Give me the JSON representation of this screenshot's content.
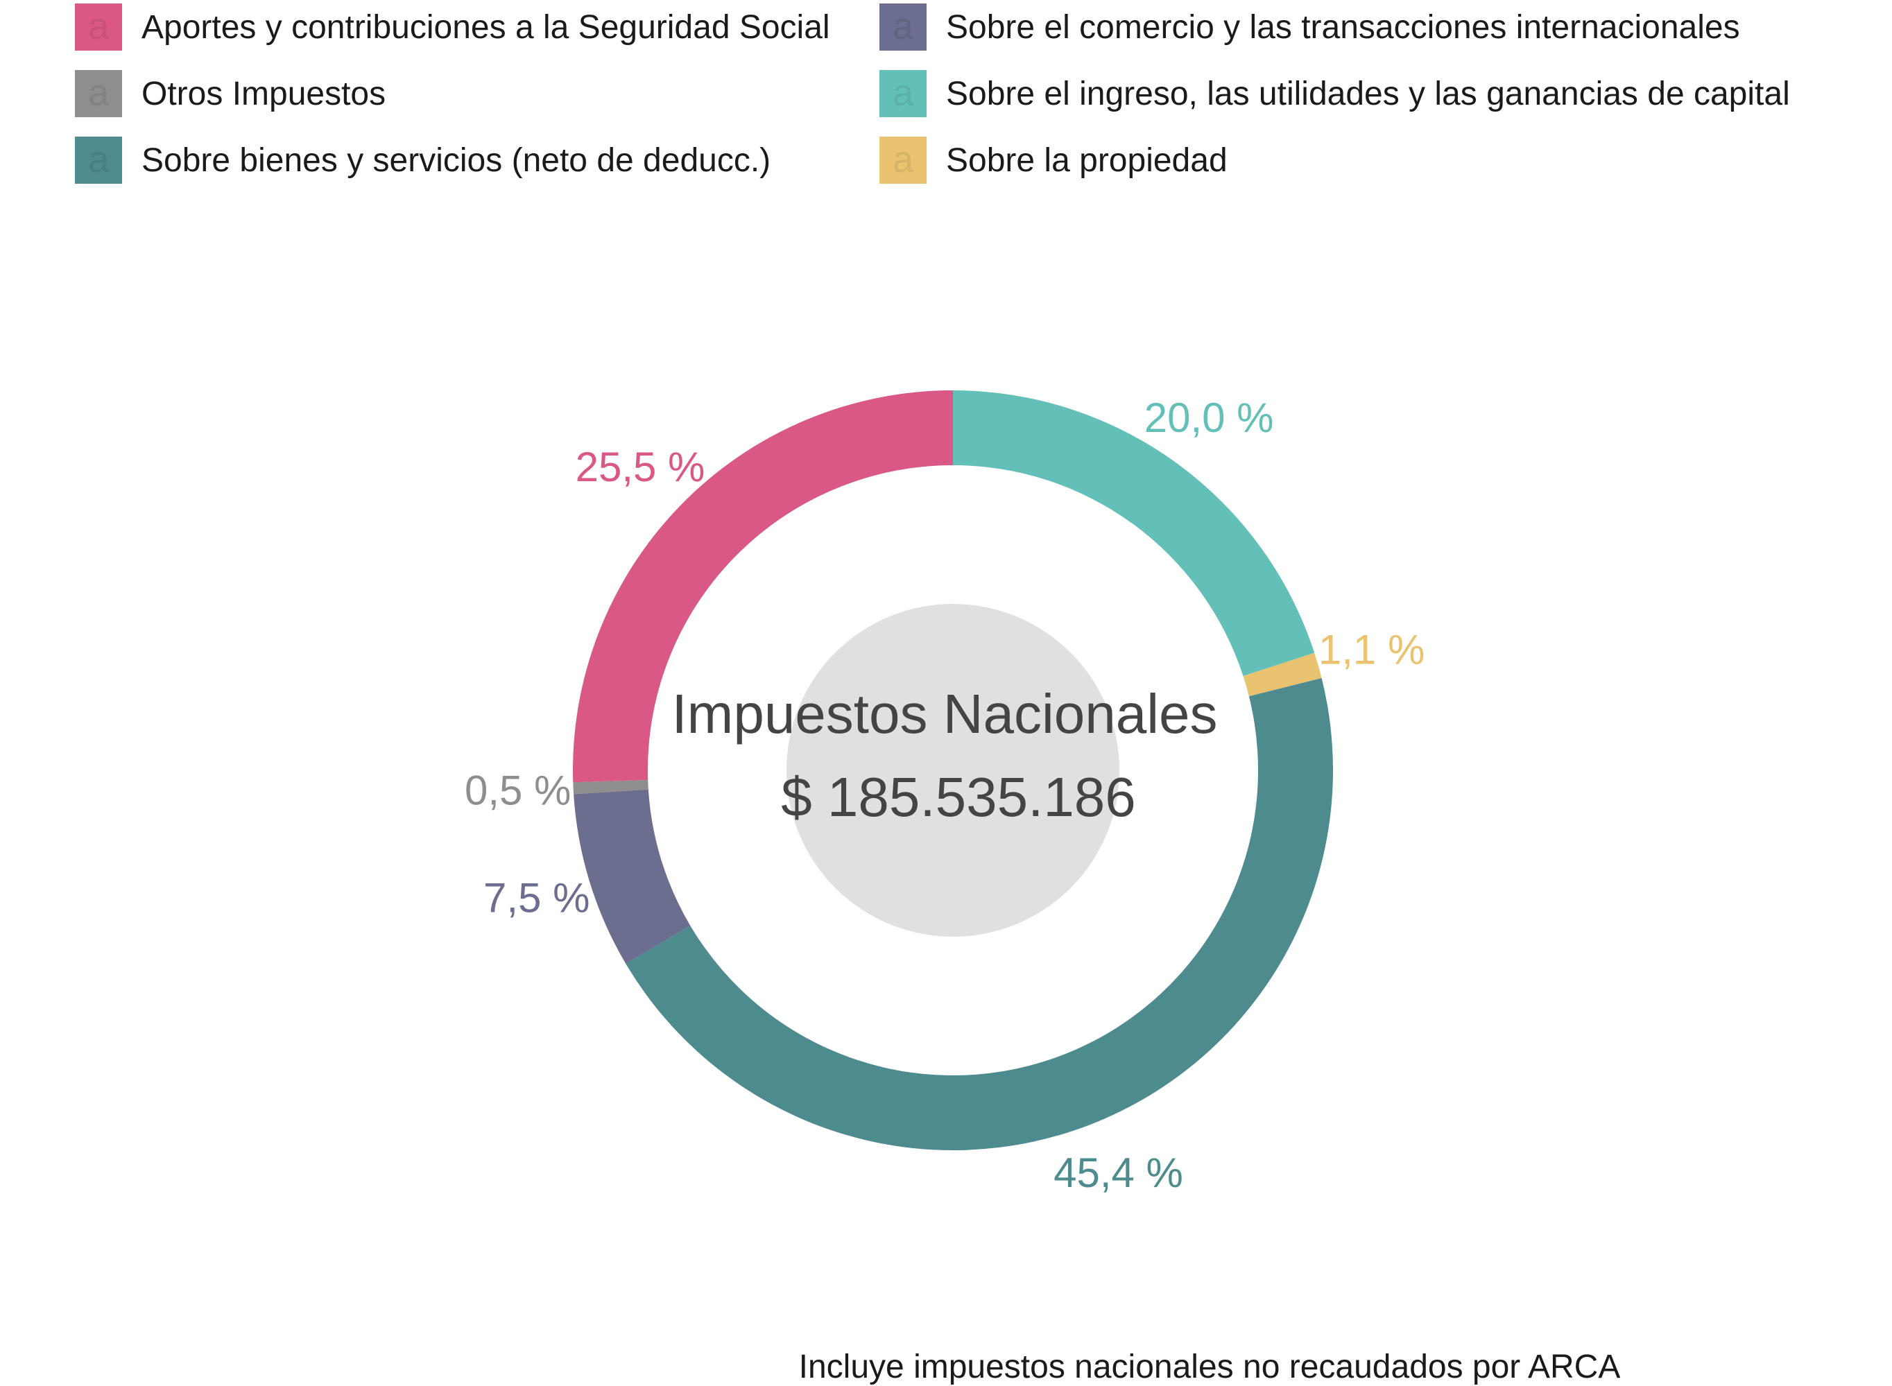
{
  "chart_data": {
    "type": "pie",
    "variant": "donut",
    "legend_position": "top",
    "center_title": "Impuestos Nacionales",
    "center_value": "$ 185.535.186",
    "caption": "Incluye impuestos nacionales no recaudados por ARCA",
    "legend_glyph": "a",
    "slices": [
      {
        "name": "Sobre el ingreso, las utilidades y las ganancias de capital",
        "value": 20.0,
        "label": "20,0 %",
        "color": "#62c0b9"
      },
      {
        "name": "Sobre la propiedad",
        "value": 1.1,
        "label": "1,1 %",
        "color": "#e9c36f"
      },
      {
        "name": "Sobre bienes y servicios (neto de deducc.)",
        "value": 45.4,
        "label": "45,4 %",
        "color": "#4e8b8f"
      },
      {
        "name": "Sobre el comercio y las transacciones internacionales",
        "value": 7.5,
        "label": "7,5 %",
        "color": "#6b6e8e"
      },
      {
        "name": "Otros Impuestos",
        "value": 0.5,
        "label": "0,5 %",
        "color": "#8e8e8e"
      },
      {
        "name": "Aportes y contribuciones a la Seguridad Social",
        "value": 25.5,
        "label": "25,5 %",
        "color": "#d95886"
      }
    ],
    "legend_order": [
      "Aportes y contribuciones a la Seguridad Social",
      "Otros Impuestos",
      "Sobre bienes y servicios (neto de deducc.)",
      "Sobre el comercio y las transacciones internacionales",
      "Sobre el ingreso, las utilidades y las ganancias de capital",
      "Sobre la propiedad"
    ]
  }
}
